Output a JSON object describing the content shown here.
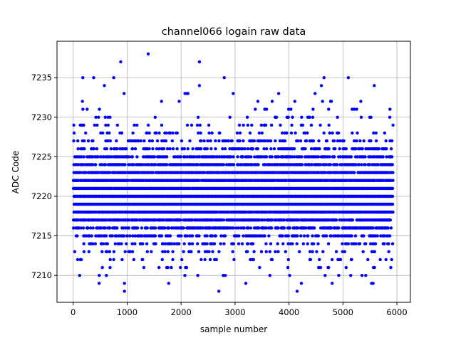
{
  "chart_data": {
    "type": "scatter",
    "title": "channel066 logain raw data",
    "xlabel": "sample number",
    "ylabel": "ADC Code",
    "xlim": [
      -300,
      6250
    ],
    "ylim": [
      7206.6,
      7239.6
    ],
    "xticks": [
      0,
      1000,
      2000,
      3000,
      4000,
      5000,
      6000
    ],
    "yticks": [
      7210,
      7215,
      7220,
      7225,
      7230,
      7235
    ],
    "grid": true,
    "marker_color": "#0000ff",
    "x_range": [
      0,
      5930
    ],
    "series": [
      {
        "description_note": "dense band of integer ADC codes sampled every x; listed outliers are explicit points",
        "dense_band": {
          "codes": [
            7210,
            7211,
            7212,
            7213,
            7214,
            7215,
            7216,
            7217,
            7218,
            7219,
            7220,
            7221,
            7222,
            7223,
            7224,
            7225,
            7226,
            7227,
            7228,
            7229,
            7230,
            7231,
            7232,
            7233,
            7234,
            7235
          ],
          "weights": [
            0.03,
            0.05,
            0.08,
            0.12,
            0.2,
            0.35,
            0.55,
            0.75,
            0.9,
            1.0,
            1.0,
            0.95,
            0.9,
            0.8,
            0.65,
            0.5,
            0.35,
            0.22,
            0.14,
            0.08,
            0.05,
            0.03,
            0.02,
            0.012,
            0.008,
            0.004
          ]
        },
        "outliers": [
          {
            "x": 880,
            "y": 7237
          },
          {
            "x": 1390,
            "y": 7238
          },
          {
            "x": 2340,
            "y": 7237
          },
          {
            "x": 180,
            "y": 7235
          },
          {
            "x": 380,
            "y": 7235
          },
          {
            "x": 4650,
            "y": 7235
          },
          {
            "x": 5100,
            "y": 7235
          },
          {
            "x": 5580,
            "y": 7234
          },
          {
            "x": 4600,
            "y": 7234
          },
          {
            "x": 2340,
            "y": 7234
          },
          {
            "x": 2700,
            "y": 7208
          },
          {
            "x": 4150,
            "y": 7208
          },
          {
            "x": 950,
            "y": 7208
          },
          {
            "x": 950,
            "y": 7209
          },
          {
            "x": 1770,
            "y": 7209
          },
          {
            "x": 3200,
            "y": 7209
          },
          {
            "x": 4230,
            "y": 7209
          },
          {
            "x": 5560,
            "y": 7209
          },
          {
            "x": 5530,
            "y": 7209
          },
          {
            "x": 480,
            "y": 7209
          },
          {
            "x": 4800,
            "y": 7209
          }
        ]
      }
    ]
  }
}
